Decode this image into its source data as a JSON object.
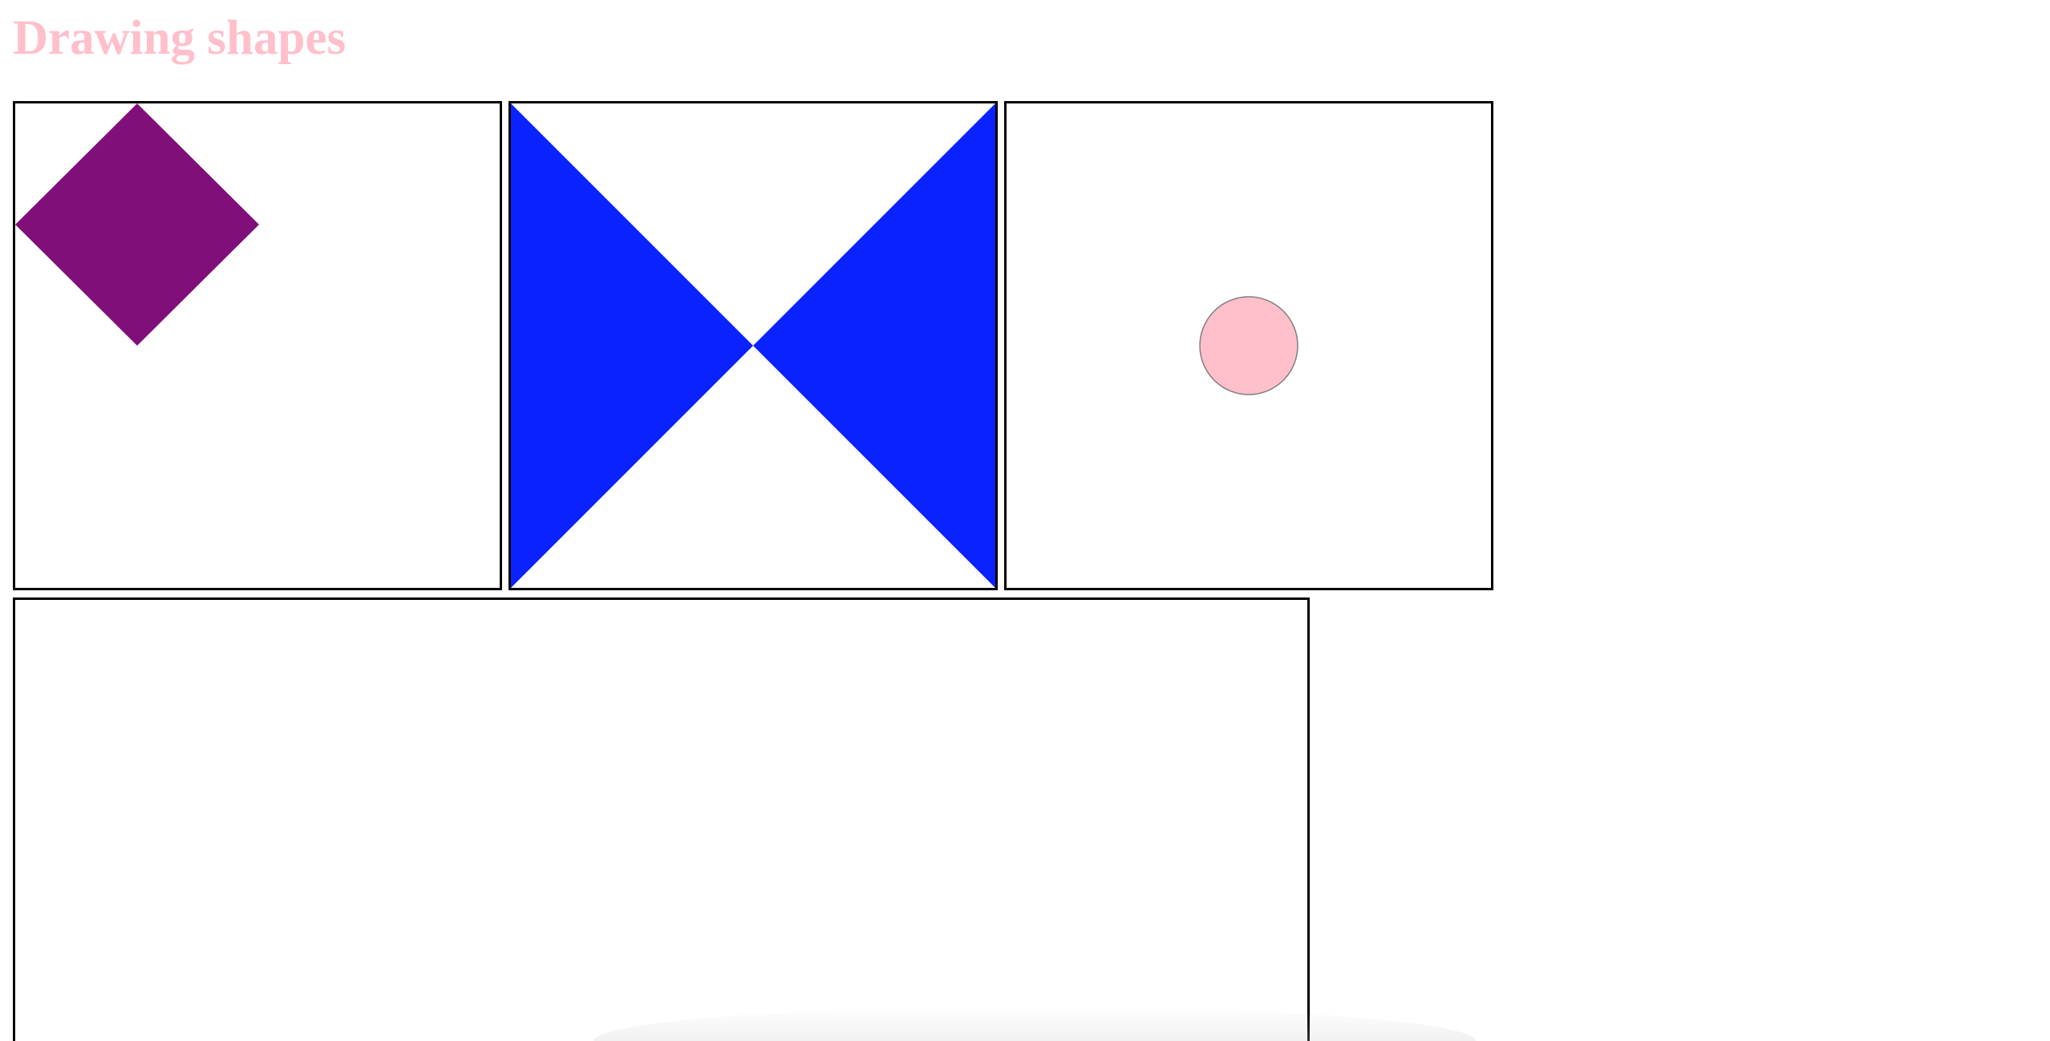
{
  "page": {
    "title": "Drawing shapes"
  },
  "colors": {
    "title": "#ffc0cb",
    "diamond_fill": "#800f7a",
    "bowtie_fill": "#0a22ff",
    "circle_fill": "#ffc0cb",
    "circle_stroke": "#7f7f7f",
    "canvas_border": "#000000"
  },
  "canvases": [
    {
      "name": "canvas-diamond",
      "shape": "diamond"
    },
    {
      "name": "canvas-bowtie",
      "shape": "bowtie"
    },
    {
      "name": "canvas-circle",
      "shape": "circle"
    },
    {
      "name": "canvas-blank",
      "shape": "none"
    }
  ]
}
